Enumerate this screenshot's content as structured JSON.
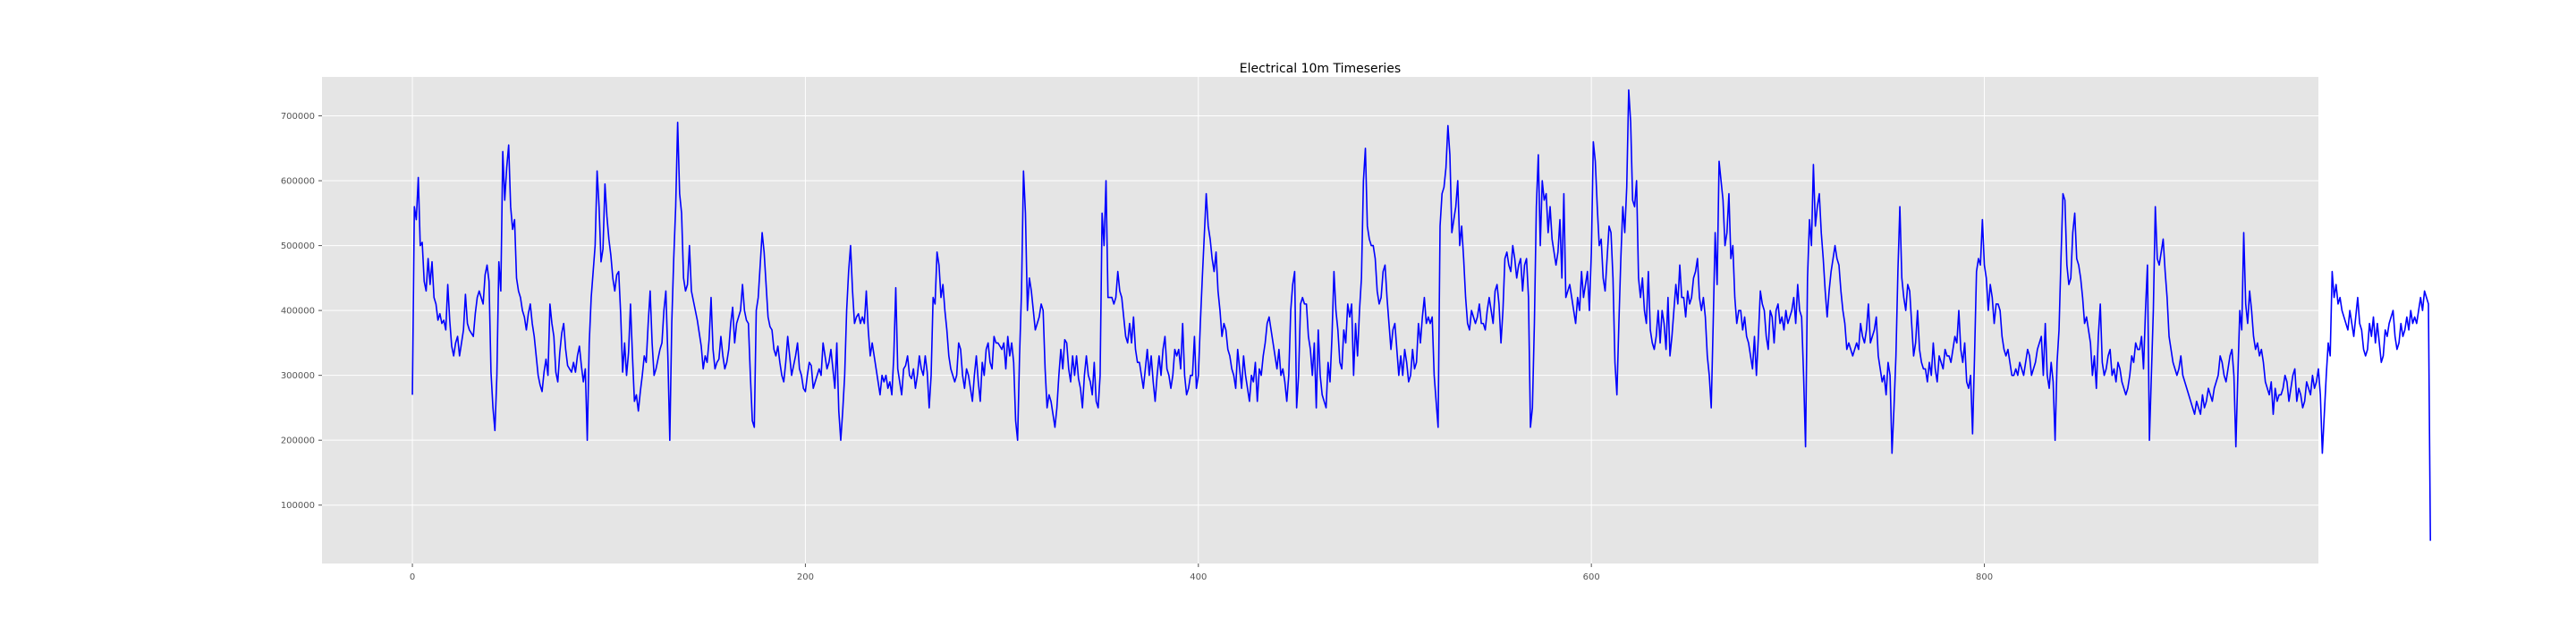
{
  "chart_data": {
    "type": "line",
    "title": "Electrical 10m Timeseries",
    "xlabel": "",
    "ylabel": "",
    "xlim": [
      -46,
      970
    ],
    "ylim": [
      10000,
      760000
    ],
    "x_ticks": [
      0,
      200,
      400,
      600,
      800
    ],
    "y_ticks": [
      100000,
      200000,
      300000,
      400000,
      500000,
      600000,
      700000
    ],
    "grid": true,
    "background": "#e5e5e5",
    "grid_color": "#ffffff",
    "series": [
      {
        "color": "#0000ff",
        "x_start": 0,
        "x_step": 1,
        "values": [
          270000,
          560000,
          540000,
          605000,
          500000,
          505000,
          445000,
          430000,
          480000,
          440000,
          475000,
          420000,
          410000,
          385000,
          395000,
          380000,
          385000,
          370000,
          440000,
          385000,
          345000,
          330000,
          350000,
          360000,
          330000,
          350000,
          370000,
          425000,
          380000,
          370000,
          365000,
          360000,
          395000,
          420000,
          430000,
          420000,
          410000,
          455000,
          470000,
          445000,
          305000,
          250000,
          215000,
          300000,
          475000,
          430000,
          645000,
          570000,
          620000,
          655000,
          560000,
          525000,
          540000,
          450000,
          430000,
          420000,
          400000,
          390000,
          370000,
          395000,
          410000,
          380000,
          360000,
          330000,
          300000,
          285000,
          275000,
          305000,
          325000,
          300000,
          410000,
          380000,
          360000,
          305000,
          290000,
          335000,
          365000,
          380000,
          340000,
          315000,
          310000,
          305000,
          320000,
          305000,
          330000,
          345000,
          315000,
          290000,
          310000,
          200000,
          350000,
          420000,
          460000,
          500000,
          615000,
          560000,
          475000,
          495000,
          595000,
          545000,
          510000,
          485000,
          450000,
          430000,
          455000,
          460000,
          395000,
          305000,
          350000,
          300000,
          335000,
          410000,
          330000,
          260000,
          270000,
          245000,
          275000,
          300000,
          330000,
          320000,
          380000,
          430000,
          350000,
          300000,
          310000,
          325000,
          340000,
          350000,
          400000,
          430000,
          330000,
          200000,
          380000,
          480000,
          560000,
          690000,
          580000,
          550000,
          450000,
          430000,
          440000,
          500000,
          430000,
          415000,
          400000,
          385000,
          365000,
          345000,
          310000,
          330000,
          320000,
          355000,
          420000,
          340000,
          310000,
          320000,
          325000,
          360000,
          330000,
          310000,
          320000,
          340000,
          380000,
          405000,
          350000,
          380000,
          390000,
          400000,
          440000,
          400000,
          385000,
          380000,
          300000,
          230000,
          220000,
          400000,
          420000,
          470000,
          520000,
          490000,
          440000,
          390000,
          375000,
          370000,
          340000,
          330000,
          345000,
          320000,
          300000,
          290000,
          320000,
          360000,
          330000,
          300000,
          315000,
          330000,
          350000,
          310000,
          300000,
          280000,
          275000,
          300000,
          320000,
          315000,
          280000,
          290000,
          300000,
          310000,
          300000,
          350000,
          330000,
          310000,
          320000,
          340000,
          310000,
          280000,
          350000,
          245000,
          200000,
          245000,
          300000,
          400000,
          460000,
          500000,
          430000,
          380000,
          390000,
          395000,
          380000,
          390000,
          380000,
          430000,
          370000,
          330000,
          350000,
          330000,
          310000,
          290000,
          270000,
          300000,
          290000,
          300000,
          280000,
          290000,
          270000,
          330000,
          435000,
          310000,
          290000,
          270000,
          310000,
          315000,
          330000,
          300000,
          295000,
          310000,
          280000,
          300000,
          330000,
          310000,
          300000,
          330000,
          305000,
          250000,
          300000,
          420000,
          410000,
          490000,
          470000,
          420000,
          440000,
          400000,
          370000,
          330000,
          310000,
          300000,
          290000,
          300000,
          350000,
          340000,
          300000,
          280000,
          310000,
          300000,
          280000,
          260000,
          300000,
          330000,
          290000,
          260000,
          320000,
          300000,
          340000,
          350000,
          320000,
          310000,
          360000,
          350000,
          350000,
          345000,
          340000,
          350000,
          310000,
          360000,
          330000,
          350000,
          320000,
          230000,
          200000,
          330000,
          430000,
          615000,
          550000,
          400000,
          450000,
          430000,
          400000,
          370000,
          380000,
          390000,
          410000,
          400000,
          310000,
          250000,
          270000,
          260000,
          240000,
          220000,
          250000,
          300000,
          340000,
          310000,
          355000,
          350000,
          310000,
          290000,
          330000,
          300000,
          330000,
          295000,
          280000,
          250000,
          300000,
          330000,
          300000,
          290000,
          270000,
          320000,
          260000,
          250000,
          300000,
          550000,
          500000,
          600000,
          420000,
          420000,
          420000,
          410000,
          420000,
          460000,
          430000,
          420000,
          390000,
          360000,
          350000,
          380000,
          350000,
          390000,
          340000,
          320000,
          320000,
          300000,
          280000,
          310000,
          340000,
          300000,
          330000,
          290000,
          260000,
          300000,
          330000,
          300000,
          340000,
          360000,
          310000,
          300000,
          280000,
          300000,
          340000,
          330000,
          340000,
          310000,
          380000,
          300000,
          270000,
          280000,
          300000,
          300000,
          360000,
          280000,
          300000,
          380000,
          450000,
          515000,
          580000,
          530000,
          510000,
          480000,
          460000,
          490000,
          430000,
          400000,
          360000,
          380000,
          370000,
          340000,
          330000,
          310000,
          300000,
          280000,
          340000,
          310000,
          280000,
          330000,
          300000,
          280000,
          260000,
          300000,
          290000,
          320000,
          260000,
          310000,
          300000,
          330000,
          350000,
          380000,
          390000,
          370000,
          350000,
          330000,
          310000,
          340000,
          300000,
          310000,
          290000,
          260000,
          300000,
          400000,
          440000,
          460000,
          250000,
          300000,
          410000,
          420000,
          410000,
          410000,
          360000,
          340000,
          300000,
          350000,
          250000,
          370000,
          300000,
          270000,
          260000,
          250000,
          320000,
          290000,
          360000,
          460000,
          400000,
          370000,
          320000,
          310000,
          370000,
          350000,
          410000,
          390000,
          410000,
          300000,
          380000,
          330000,
          400000,
          450000,
          600000,
          650000,
          530000,
          510000,
          500000,
          500000,
          480000,
          430000,
          410000,
          420000,
          460000,
          470000,
          420000,
          380000,
          340000,
          370000,
          380000,
          340000,
          300000,
          330000,
          300000,
          340000,
          320000,
          290000,
          300000,
          340000,
          310000,
          320000,
          380000,
          350000,
          390000,
          420000,
          380000,
          390000,
          380000,
          390000,
          300000,
          260000,
          220000,
          530000,
          580000,
          590000,
          620000,
          685000,
          640000,
          520000,
          540000,
          560000,
          600000,
          500000,
          530000,
          480000,
          420000,
          380000,
          370000,
          400000,
          390000,
          380000,
          390000,
          410000,
          380000,
          380000,
          370000,
          400000,
          420000,
          400000,
          380000,
          430000,
          440000,
          410000,
          350000,
          400000,
          480000,
          490000,
          470000,
          460000,
          500000,
          480000,
          450000,
          470000,
          480000,
          430000,
          470000,
          480000,
          420000,
          220000,
          250000,
          380000,
          560000,
          640000,
          500000,
          600000,
          570000,
          580000,
          520000,
          560000,
          510000,
          490000,
          470000,
          490000,
          540000,
          450000,
          580000,
          420000,
          430000,
          440000,
          420000,
          400000,
          380000,
          420000,
          400000,
          460000,
          420000,
          440000,
          460000,
          400000,
          490000,
          660000,
          630000,
          560000,
          500000,
          510000,
          450000,
          430000,
          480000,
          530000,
          520000,
          450000,
          320000,
          270000,
          380000,
          480000,
          560000,
          520000,
          590000,
          740000,
          690000,
          570000,
          560000,
          600000,
          450000,
          420000,
          450000,
          400000,
          380000,
          460000,
          370000,
          350000,
          340000,
          360000,
          400000,
          350000,
          400000,
          380000,
          340000,
          420000,
          330000,
          360000,
          400000,
          440000,
          410000,
          470000,
          420000,
          420000,
          390000,
          430000,
          410000,
          420000,
          450000,
          460000,
          480000,
          420000,
          400000,
          420000,
          390000,
          330000,
          300000,
          250000,
          380000,
          520000,
          440000,
          630000,
          600000,
          570000,
          500000,
          520000,
          580000,
          480000,
          500000,
          420000,
          380000,
          400000,
          400000,
          370000,
          390000,
          360000,
          350000,
          330000,
          310000,
          360000,
          300000,
          360000,
          430000,
          410000,
          400000,
          360000,
          340000,
          400000,
          390000,
          350000,
          400000,
          410000,
          380000,
          390000,
          370000,
          400000,
          380000,
          390000,
          400000,
          420000,
          380000,
          440000,
          400000,
          390000,
          300000,
          190000,
          450000,
          540000,
          500000,
          625000,
          530000,
          560000,
          580000,
          520000,
          480000,
          430000,
          390000,
          430000,
          460000,
          480000,
          500000,
          480000,
          470000,
          430000,
          400000,
          380000,
          340000,
          350000,
          340000,
          330000,
          340000,
          350000,
          340000,
          380000,
          360000,
          350000,
          370000,
          410000,
          350000,
          360000,
          370000,
          390000,
          330000,
          310000,
          290000,
          300000,
          270000,
          320000,
          300000,
          180000,
          250000,
          330000,
          460000,
          560000,
          450000,
          420000,
          400000,
          440000,
          430000,
          380000,
          330000,
          350000,
          400000,
          340000,
          320000,
          310000,
          310000,
          290000,
          320000,
          300000,
          350000,
          310000,
          290000,
          330000,
          320000,
          310000,
          340000,
          330000,
          330000,
          320000,
          340000,
          360000,
          350000,
          400000,
          340000,
          320000,
          350000,
          290000,
          280000,
          300000,
          210000,
          330000,
          460000,
          480000,
          470000,
          540000,
          470000,
          450000,
          400000,
          440000,
          420000,
          380000,
          410000,
          410000,
          400000,
          360000,
          340000,
          330000,
          340000,
          320000,
          300000,
          300000,
          310000,
          300000,
          320000,
          310000,
          300000,
          320000,
          340000,
          330000,
          300000,
          310000,
          320000,
          340000,
          350000,
          360000,
          300000,
          380000,
          300000,
          280000,
          320000,
          290000,
          200000,
          320000,
          370000,
          480000,
          580000,
          570000,
          470000,
          440000,
          450000,
          520000,
          550000,
          480000,
          470000,
          450000,
          420000,
          380000,
          390000,
          370000,
          350000,
          300000,
          330000,
          280000,
          360000,
          410000,
          320000,
          300000,
          310000,
          330000,
          340000,
          300000,
          310000,
          290000,
          320000,
          310000,
          290000,
          280000,
          270000,
          280000,
          300000,
          330000,
          320000,
          350000,
          340000,
          340000,
          360000,
          310000,
          400000,
          470000,
          200000,
          300000,
          400000,
          560000,
          480000,
          470000,
          490000,
          510000,
          460000,
          420000,
          360000,
          340000,
          320000,
          310000,
          300000,
          310000,
          330000,
          300000,
          290000,
          280000,
          270000,
          260000,
          250000,
          240000,
          260000,
          250000,
          240000,
          270000,
          250000,
          260000,
          280000,
          270000,
          260000,
          280000,
          290000,
          300000,
          330000,
          320000,
          300000,
          290000,
          310000,
          330000,
          340000,
          300000,
          190000,
          300000,
          400000,
          370000,
          520000,
          410000,
          380000,
          430000,
          400000,
          360000,
          340000,
          350000,
          330000,
          340000,
          320000,
          290000,
          280000,
          270000,
          290000,
          240000,
          280000,
          260000,
          270000,
          270000,
          280000,
          300000,
          290000,
          260000,
          280000,
          300000,
          310000,
          260000,
          280000,
          270000,
          250000,
          260000,
          290000,
          280000,
          270000,
          300000,
          280000,
          290000,
          310000,
          270000,
          180000,
          240000,
          300000,
          350000,
          330000,
          460000,
          420000,
          440000,
          410000,
          420000,
          400000,
          390000,
          380000,
          370000,
          400000,
          380000,
          360000,
          390000,
          420000,
          380000,
          370000,
          340000,
          330000,
          340000,
          380000,
          360000,
          390000,
          350000,
          380000,
          350000,
          320000,
          330000,
          370000,
          360000,
          380000,
          390000,
          400000,
          360000,
          340000,
          350000,
          380000,
          360000,
          370000,
          390000,
          370000,
          400000,
          380000,
          390000,
          380000,
          400000,
          420000,
          400000,
          430000,
          420000,
          410000,
          45000
        ]
      }
    ]
  }
}
